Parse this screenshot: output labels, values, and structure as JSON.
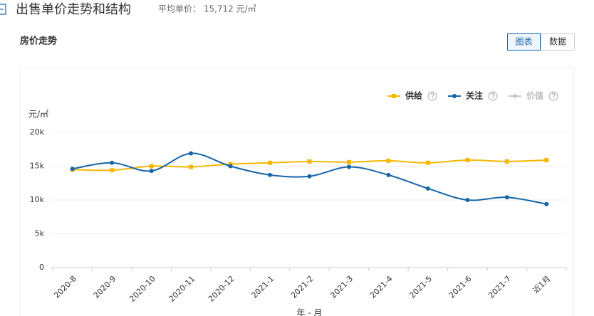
{
  "header": {
    "title": "出售单价走势和结构",
    "average_price": "平均单价： 15,712 元/㎡"
  },
  "section_title": "房价走势",
  "view_tabs": [
    "图表",
    "数据"
  ],
  "chart_data": {
    "type": "line",
    "y_axis_label": "元/㎡",
    "x_axis_label": "年 - 月",
    "categories": [
      "2020-8",
      "2020-9",
      "2020-10",
      "2020-11",
      "2020-12",
      "2021-1",
      "2021-2",
      "2021-3",
      "2021-4",
      "2021-5",
      "2021-6",
      "2021-7",
      "近1月"
    ],
    "series": [
      {
        "name": "供给",
        "color": "#f5b800",
        "marker": "square",
        "values": [
          14500,
          14400,
          15000,
          14900,
          15300,
          15500,
          15700,
          15600,
          15800,
          15500,
          15900,
          15700,
          15900
        ]
      },
      {
        "name": "关注",
        "color": "#1665a8",
        "marker": "circle",
        "values": [
          14600,
          15500,
          14300,
          16900,
          15000,
          13700,
          13500,
          14900,
          13700,
          11700,
          10000,
          10400,
          9400
        ]
      },
      {
        "name": "价值",
        "color": "#c8c8c8",
        "marker": "circle",
        "values": [
          null,
          null,
          null,
          null,
          null,
          null,
          null,
          null,
          null,
          null,
          null,
          null,
          null
        ]
      }
    ],
    "ylim": [
      0,
      20000
    ],
    "yticks": [
      0,
      {
        "value": 5000,
        "label": "5k"
      },
      {
        "value": 10000,
        "label": "10k"
      },
      {
        "value": 15000,
        "label": "15k"
      },
      {
        "value": 20000,
        "label": "20k"
      }
    ],
    "grid": true,
    "smooth": true,
    "legend": "top-right"
  }
}
